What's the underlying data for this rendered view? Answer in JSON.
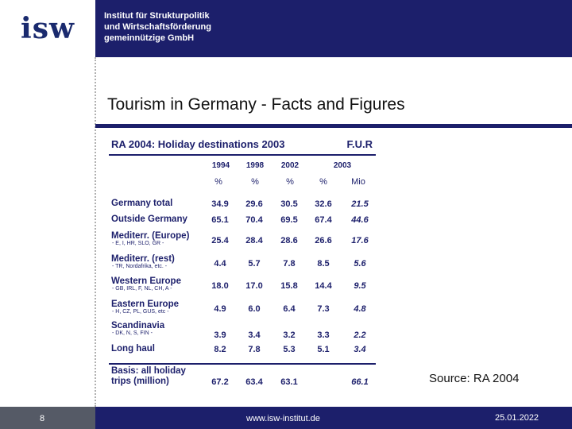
{
  "header": {
    "logo_text": "isw",
    "org_name": "Institut für Strukturpolitik\nund Wirtschaftsförderung\ngemeinnützige GmbH"
  },
  "slide": {
    "title": "Tourism in Germany - Facts and Figures",
    "source": "Source: RA 2004"
  },
  "table": {
    "title": "RA 2004: Holiday destinations 2003",
    "publisher": "F.U.R",
    "col_years": [
      "1994",
      "1998",
      "2002",
      "2003"
    ],
    "col_units": [
      "%",
      "%",
      "%",
      "%",
      "Mio"
    ],
    "rows": [
      {
        "label": "Germany total",
        "sub": "",
        "values": [
          "34.9",
          "29.6",
          "30.5",
          "32.6",
          "21.5"
        ]
      },
      {
        "label": "Outside Germany",
        "sub": "",
        "values": [
          "65.1",
          "70.4",
          "69.5",
          "67.4",
          "44.6"
        ]
      },
      {
        "label": "Mediterr. (Europe)",
        "sub": "- E, I, HR, SLO, GR -",
        "values": [
          "25.4",
          "28.4",
          "28.6",
          "26.6",
          "17.6"
        ]
      },
      {
        "label": "Mediterr. (rest)",
        "sub": "- TR, Nordafrika, etc. -",
        "values": [
          "4.4",
          "5.7",
          "7.8",
          "8.5",
          "5.6"
        ]
      },
      {
        "label": "Western Europe",
        "sub": "- GB, IRL, F, NL, CH, A -",
        "values": [
          "18.0",
          "17.0",
          "15.8",
          "14.4",
          "9.5"
        ]
      },
      {
        "label": "Eastern Europe",
        "sub": "- H, CZ, PL, GUS, etc -",
        "values": [
          "4.9",
          "6.0",
          "6.4",
          "7.3",
          "4.8"
        ]
      },
      {
        "label": "Scandinavia",
        "sub": "- DK, N, S, FIN -",
        "values": [
          "3.9",
          "3.4",
          "3.2",
          "3.3",
          "2.2"
        ]
      },
      {
        "label": "Long haul",
        "sub": "",
        "values": [
          "8.2",
          "7.8",
          "5.3",
          "5.1",
          "3.4"
        ]
      }
    ],
    "basis": {
      "label_1": "Basis: all holiday",
      "label_2": "trips (million)",
      "values": [
        "67.2",
        "63.4",
        "63.1",
        "",
        "66.1"
      ]
    }
  },
  "footer": {
    "page": "8",
    "url": "www.isw-institut.de",
    "date": "25.01.2022"
  }
}
